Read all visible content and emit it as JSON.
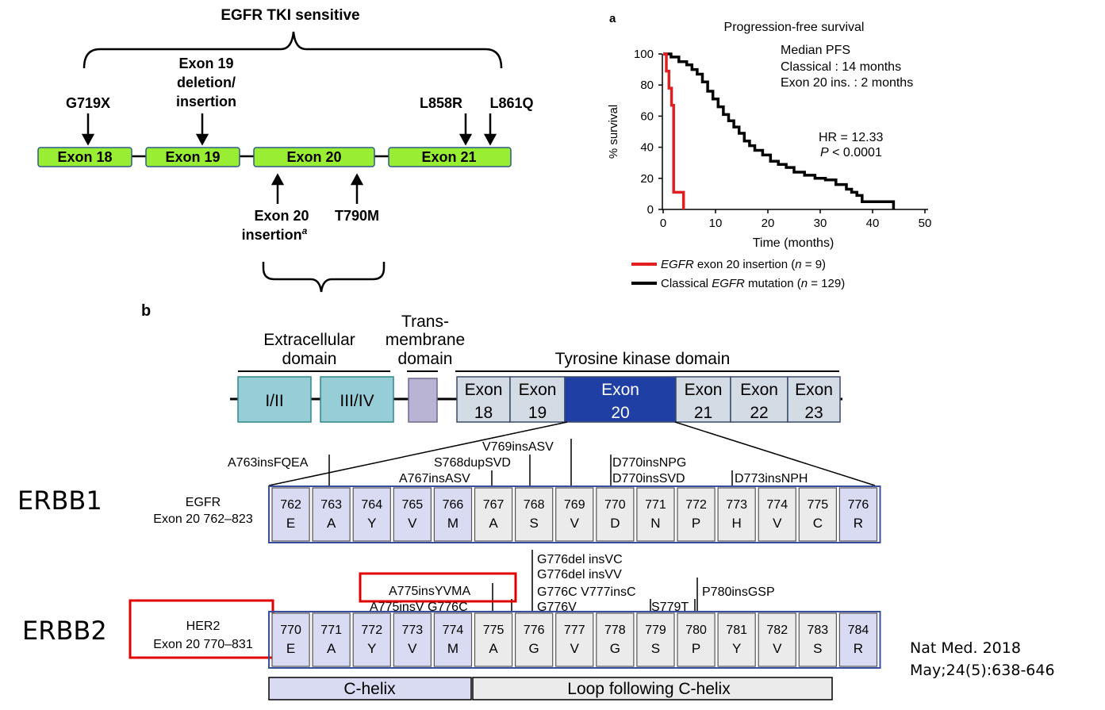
{
  "panel_top_left": {
    "title": "EGFR TKI sensitive",
    "exons": [
      "Exon 18",
      "Exon 19",
      "Exon 20",
      "Exon 21"
    ],
    "mutations_above": {
      "g719x": "G719X",
      "exon19_line1": "Exon 19",
      "exon19_line2": "deletion/",
      "exon19_line3": "insertion",
      "l858r": "L858R",
      "l861q": "L861Q"
    },
    "mutations_below": {
      "ins_line1": "Exon 20",
      "ins_line2": "insertion",
      "ins_sup": "a",
      "t790m": "T790M"
    }
  },
  "panel_a": {
    "label": "a",
    "chart_data": {
      "type": "line",
      "title": "Progression-free survival",
      "xlabel": "Time (months)",
      "ylabel": "% survival",
      "xlim": [
        0,
        50
      ],
      "ylim": [
        0,
        100
      ],
      "xticks": [
        "0",
        "10",
        "20",
        "30",
        "40",
        "50"
      ],
      "yticks": [
        "0",
        "20",
        "40",
        "60",
        "80",
        "100"
      ],
      "annotations": {
        "median_title": "Median PFS",
        "median_classical": "Classical : 14 months",
        "median_exon20": "Exon 20 ins. : 2 months",
        "hr": "HR = 12.33",
        "p_prefix": "P",
        "p_value": " < 0.0001"
      },
      "series": [
        {
          "name": "EGFR exon 20 insertion (n = 9)",
          "legend_italic": "EGFR",
          "legend_rest": " exon 20 insertion (",
          "legend_n": "n",
          "legend_end": " = 9)",
          "color": "#e02020",
          "points": [
            [
              0,
              100
            ],
            [
              0.6,
              100
            ],
            [
              0.6,
              89
            ],
            [
              1.1,
              89
            ],
            [
              1.1,
              78
            ],
            [
              1.6,
              78
            ],
            [
              1.6,
              67
            ],
            [
              2.0,
              67
            ],
            [
              2.0,
              11
            ],
            [
              3.9,
              11
            ],
            [
              3.9,
              0
            ]
          ]
        },
        {
          "name": "Classical EGFR mutation (n = 129)",
          "legend_pre": "Classical ",
          "legend_italic": "EGFR",
          "legend_rest": " mutation (",
          "legend_n": "n",
          "legend_end": " = 129)",
          "color": "#000000",
          "points": [
            [
              0,
              100
            ],
            [
              1.5,
              100
            ],
            [
              1.5,
              98
            ],
            [
              3,
              98
            ],
            [
              3,
              95
            ],
            [
              4.5,
              95
            ],
            [
              4.5,
              93
            ],
            [
              5.5,
              93
            ],
            [
              5.5,
              90
            ],
            [
              6.5,
              90
            ],
            [
              6.5,
              87
            ],
            [
              7.5,
              87
            ],
            [
              7.5,
              82
            ],
            [
              8.5,
              82
            ],
            [
              8.5,
              76
            ],
            [
              9.5,
              76
            ],
            [
              9.5,
              71
            ],
            [
              10.5,
              71
            ],
            [
              10.5,
              66
            ],
            [
              11.5,
              66
            ],
            [
              11.5,
              61
            ],
            [
              12.5,
              61
            ],
            [
              12.5,
              57
            ],
            [
              13.5,
              57
            ],
            [
              13.5,
              53
            ],
            [
              14.5,
              53
            ],
            [
              14.5,
              49
            ],
            [
              15.5,
              49
            ],
            [
              15.5,
              44
            ],
            [
              16.5,
              44
            ],
            [
              16.5,
              41
            ],
            [
              17.5,
              41
            ],
            [
              17.5,
              38
            ],
            [
              19,
              38
            ],
            [
              19,
              35
            ],
            [
              20.5,
              35
            ],
            [
              20.5,
              31
            ],
            [
              22,
              31
            ],
            [
              22,
              29
            ],
            [
              23.5,
              29
            ],
            [
              23.5,
              27
            ],
            [
              25,
              27
            ],
            [
              25,
              24
            ],
            [
              27,
              24
            ],
            [
              27,
              22
            ],
            [
              29,
              22
            ],
            [
              29,
              20
            ],
            [
              31,
              20
            ],
            [
              31,
              19
            ],
            [
              33,
              19
            ],
            [
              33,
              16
            ],
            [
              35,
              16
            ],
            [
              35,
              13
            ],
            [
              36,
              13
            ],
            [
              36,
              11
            ],
            [
              37,
              11
            ],
            [
              37,
              9
            ],
            [
              38,
              9
            ],
            [
              38,
              5
            ],
            [
              41,
              5
            ],
            [
              41,
              5
            ],
            [
              44,
              5
            ],
            [
              44,
              0
            ]
          ]
        }
      ]
    }
  },
  "panel_b": {
    "label": "b",
    "domains": {
      "extracellular_line1": "Extracellular",
      "extracellular_line2": "domain",
      "trans_line1": "Trans-",
      "trans_line2": "membrane",
      "trans_line3": "domain",
      "tk": "Tyrosine kinase domain"
    },
    "blocks": {
      "i_ii": "I/II",
      "iii_iv": "III/IV",
      "exons": [
        {
          "top": "Exon",
          "bottom": "18"
        },
        {
          "top": "Exon",
          "bottom": "19"
        },
        {
          "top": "Exon",
          "bottom": "20"
        },
        {
          "top": "Exon",
          "bottom": "21"
        },
        {
          "top": "Exon",
          "bottom": "22"
        },
        {
          "top": "Exon",
          "bottom": "23"
        }
      ]
    },
    "egfr_mutations": [
      "A763insFQEA",
      "V769insASV",
      "S768dupSVD",
      "A767insASV",
      "D770insNPG",
      "D770insSVD",
      "D773insNPH"
    ],
    "egfr_label_line1": "EGFR",
    "egfr_label_line2": "Exon 20 762–823",
    "egfr_residues": [
      {
        "num": "762",
        "aa": "E"
      },
      {
        "num": "763",
        "aa": "A"
      },
      {
        "num": "764",
        "aa": "Y"
      },
      {
        "num": "765",
        "aa": "V"
      },
      {
        "num": "766",
        "aa": "M"
      },
      {
        "num": "767",
        "aa": "A"
      },
      {
        "num": "768",
        "aa": "S"
      },
      {
        "num": "769",
        "aa": "V"
      },
      {
        "num": "770",
        "aa": "D"
      },
      {
        "num": "771",
        "aa": "N"
      },
      {
        "num": "772",
        "aa": "P"
      },
      {
        "num": "773",
        "aa": "H"
      },
      {
        "num": "774",
        "aa": "V"
      },
      {
        "num": "775",
        "aa": "C"
      },
      {
        "num": "776",
        "aa": "R"
      }
    ],
    "her2_mutations": [
      "G776del insVC",
      "G776del insVV",
      "G776C V777insC",
      "G776V",
      "A775insYVMA",
      "A775insV G776C",
      "S779T",
      "P780insGSP"
    ],
    "her2_label_line1": "HER2",
    "her2_label_line2": "Exon 20 770–831",
    "her2_residues": [
      {
        "num": "770",
        "aa": "E"
      },
      {
        "num": "771",
        "aa": "A"
      },
      {
        "num": "772",
        "aa": "Y"
      },
      {
        "num": "773",
        "aa": "V"
      },
      {
        "num": "774",
        "aa": "M"
      },
      {
        "num": "775",
        "aa": "A"
      },
      {
        "num": "776",
        "aa": "G"
      },
      {
        "num": "777",
        "aa": "V"
      },
      {
        "num": "778",
        "aa": "G"
      },
      {
        "num": "779",
        "aa": "S"
      },
      {
        "num": "780",
        "aa": "P"
      },
      {
        "num": "781",
        "aa": "Y"
      },
      {
        "num": "782",
        "aa": "V"
      },
      {
        "num": "783",
        "aa": "S"
      },
      {
        "num": "784",
        "aa": "R"
      }
    ],
    "c_helix": "C-helix",
    "loop": "Loop following C-helix"
  },
  "side_labels": {
    "erbb1": "ERBB1",
    "erbb2": "ERBB2"
  },
  "citation": {
    "line1": "Nat Med. 2018",
    "line2": "May;24(5):638-646"
  },
  "colors": {
    "exon_green": "#99ee33",
    "exon_green_border": "#2a5a8a",
    "domain_teal": "#96cdd6",
    "tm_purple": "#b9b4d3",
    "exon_grey": "#d3dbe4",
    "exon20_blue": "#1f3fa4",
    "res_lavender": "#d9dbf2",
    "res_grey": "#ebebeb",
    "res_border": "#3a4ea0",
    "highlight_red": "#e00000"
  }
}
